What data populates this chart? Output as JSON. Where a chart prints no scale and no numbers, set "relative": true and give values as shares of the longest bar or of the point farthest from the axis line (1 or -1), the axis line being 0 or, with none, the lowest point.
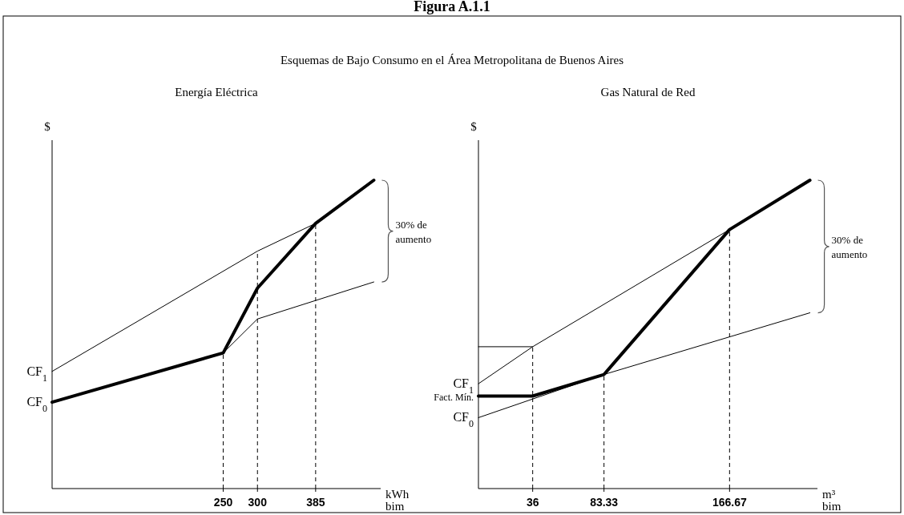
{
  "chart_data": [
    {
      "type": "line",
      "title": "Energía Eléctrica",
      "ylabel": "$",
      "xlabel": "kWh bim",
      "relative": true,
      "xlim": [
        0,
        480
      ],
      "xticks": [
        250,
        300,
        385
      ],
      "tick_labels": "x",
      "marker": "none",
      "annotations": [
        "Figura A.1.1",
        "Esquemas de Bajo Consumo en el Área Metropolitana de Buenos Aires",
        "CF$_{1}$",
        "CF$_{0}$",
        "30% de aumento"
      ],
      "ref_lines": [
        {
          "axis": "x",
          "value": 250,
          "line_style": "dashed"
        },
        {
          "axis": "x",
          "value": 300,
          "line_style": "dashed"
        },
        {
          "axis": "x",
          "value": 385,
          "line_style": "dashed"
        }
      ],
      "series": [
        {
          "color": "#000000",
          "x": [
            0,
            250,
            300,
            385,
            470
          ],
          "values": [
            0.28,
            0.44,
            0.65,
            0.86,
            1
          ]
        },
        {
          "color": "#000000",
          "x": [
            0,
            300,
            385
          ],
          "values": [
            0.38,
            0.77,
            0.86
          ]
        },
        {
          "color": "#000000",
          "x": [
            250,
            300,
            470
          ],
          "values": [
            0.44,
            0.55,
            0.67
          ]
        }
      ]
    },
    {
      "type": "line",
      "title": "Gas Natural de Red",
      "ylabel": "$",
      "xlabel": "m³ bim",
      "relative": true,
      "xlim": [
        0,
        225
      ],
      "xticks": [
        36,
        83.33,
        166.67
      ],
      "tick_labels": "x",
      "marker": "none",
      "annotations": [
        "CF$_{1}$",
        "Fact. Mín.",
        "CF$_{0}$",
        "30% de aumento"
      ],
      "ref_lines": [
        {
          "axis": "x",
          "value": 36,
          "line_style": "dashed"
        },
        {
          "axis": "x",
          "value": 83.33,
          "line_style": "dashed"
        },
        {
          "axis": "x",
          "value": 166.67,
          "line_style": "dashed"
        }
      ],
      "series": [
        {
          "color": "#000000",
          "x": [
            0,
            36,
            83.33,
            166.67,
            220
          ],
          "values": [
            0.3,
            0.3,
            0.37,
            0.84,
            1
          ]
        },
        {
          "color": "#000000",
          "x": [
            0,
            36,
            166.67
          ],
          "values": [
            0.34,
            0.46,
            0.84
          ]
        },
        {
          "color": "#000000",
          "x": [
            0,
            83.33,
            220
          ],
          "values": [
            0.23,
            0.37,
            0.57
          ]
        },
        {
          "color": "#000000",
          "x": [
            0,
            36
          ],
          "values": [
            0.46,
            0.46
          ]
        }
      ]
    }
  ]
}
